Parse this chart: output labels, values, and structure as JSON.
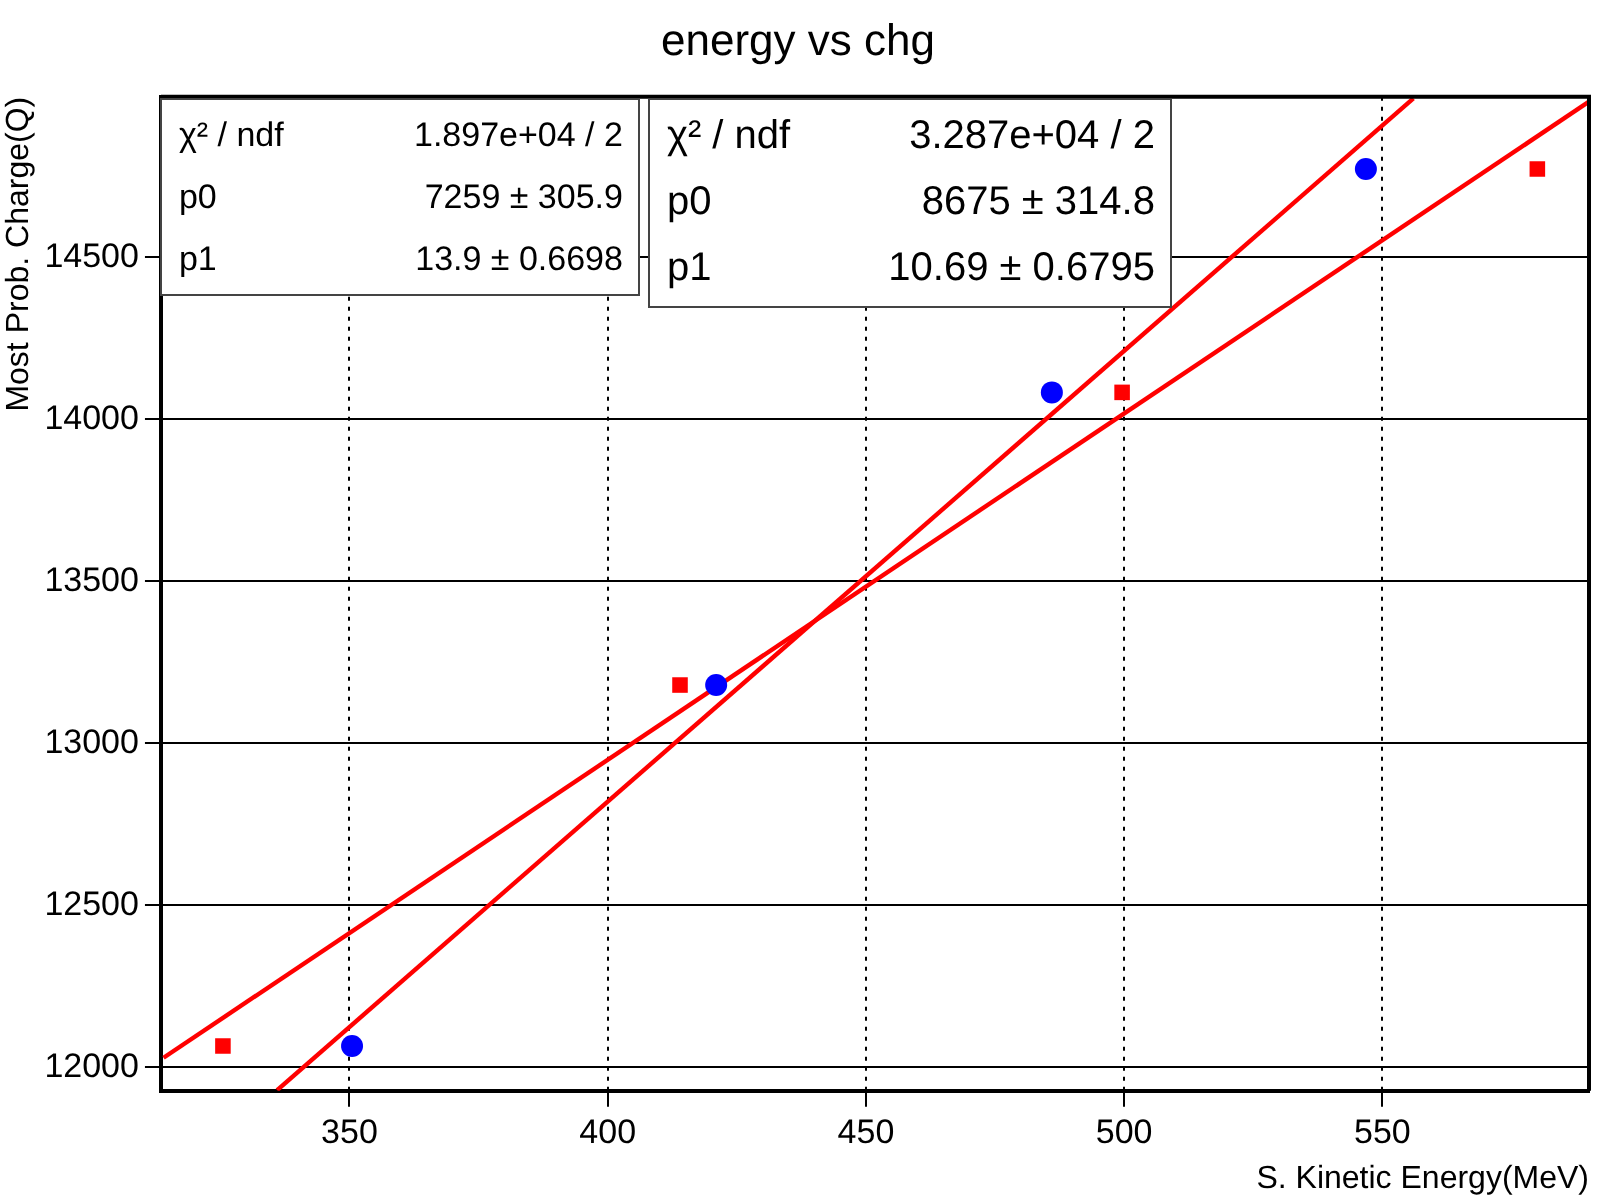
{
  "chart_data": {
    "type": "scatter",
    "title": "energy vs chg",
    "xlabel": "S. Kinetic Energy(MeV)",
    "ylabel": "Most Prob. Charge(Q)",
    "xlim": [
      313.5,
      590
    ],
    "xticks": [
      350,
      400,
      450,
      500,
      550
    ],
    "ylim": [
      11928,
      14995
    ],
    "yticks": [
      12000,
      12500,
      13000,
      13500,
      14000,
      14500
    ],
    "grid": true,
    "legend": false,
    "series": [
      {
        "type": "scatter",
        "marker": "circle",
        "color": "#0000ff",
        "x": [
          350.5,
          421,
          486,
          546.8
        ],
        "values": [
          12066,
          13180,
          14083,
          14772
        ]
      },
      {
        "type": "scatter",
        "marker": "square",
        "color": "#ff0000",
        "x": [
          325.5,
          414,
          499.6,
          580
        ],
        "values": [
          12066,
          13180,
          14083,
          14772
        ]
      },
      {
        "type": "line",
        "marker": "none",
        "color": "#ff0000",
        "x": [
          336,
          556
        ],
        "values": [
          11930,
          14990
        ]
      },
      {
        "type": "line",
        "marker": "none",
        "color": "#ff0000",
        "x": [
          314,
          590
        ],
        "values": [
          12030,
          14980
        ]
      }
    ],
    "annotations": [
      "χ² / ndf",
      "1.897e+04 / 2",
      "p0",
      "7259 ± 305.9",
      "p1",
      "13.9 ± 0.6698",
      "χ² / ndf",
      "3.287e+04 / 2",
      "p0",
      "8675 ± 314.8",
      "p1",
      "10.69 ± 0.6795"
    ]
  }
}
